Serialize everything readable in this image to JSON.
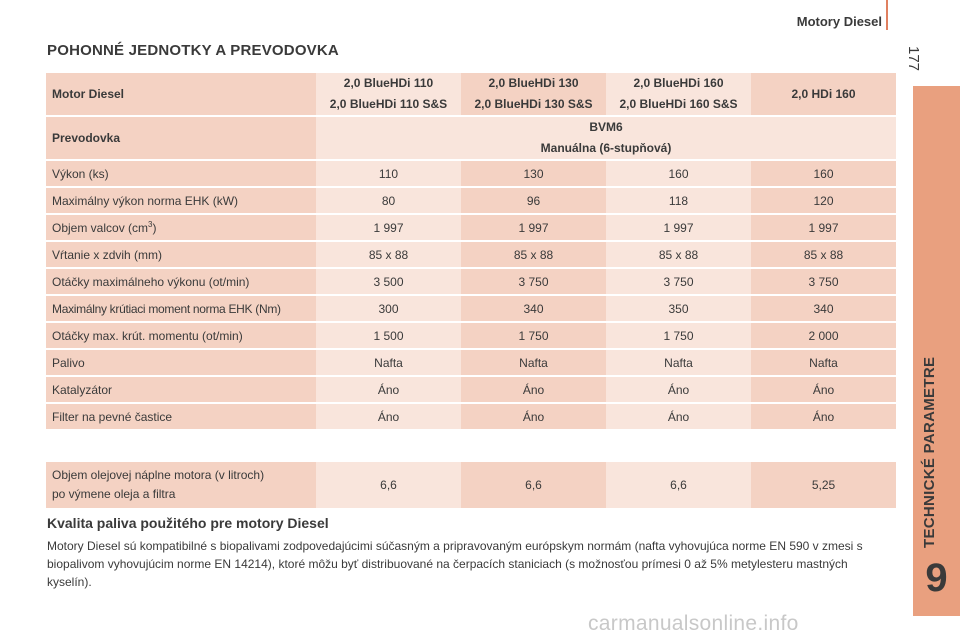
{
  "header": {
    "title": "Motory Diesel",
    "page_number": "177"
  },
  "side_tab": {
    "label": "TECHNICKÉ PARAMETRE",
    "chapter": "9"
  },
  "section_title": "POHONNÉ JEDNOTKY A PREVODOVKA",
  "table": {
    "header_label": "Motor Diesel",
    "engines": [
      {
        "line1": "2,0 BlueHDi 110",
        "line2": "2,0 BlueHDi 110 S&S"
      },
      {
        "line1": "2,0 BlueHDi 130",
        "line2": "2,0 BlueHDi 130 S&S"
      },
      {
        "line1": "2,0 BlueHDi 160",
        "line2": "2,0 BlueHDi 160 S&S"
      },
      {
        "line1": "2,0 HDi 160",
        "line2": ""
      }
    ],
    "gearbox_label": "Prevodovka",
    "gearbox_line1": "BVM6",
    "gearbox_line2": "Manuálna (6-stupňová)",
    "rows": [
      {
        "label": "Výkon (ks)",
        "values": [
          "110",
          "130",
          "160",
          "160"
        ]
      },
      {
        "label": "Maximálny výkon norma EHK (kW)",
        "values": [
          "80",
          "96",
          "118",
          "120"
        ]
      },
      {
        "label_pre": "Objem valcov (cm",
        "label_sup": "3",
        "label_post": ")",
        "values": [
          "1 997",
          "1 997",
          "1 997",
          "1 997"
        ]
      },
      {
        "label": "Vŕtanie x zdvih (mm)",
        "values": [
          "85 x 88",
          "85 x 88",
          "85 x 88",
          "85 x 88"
        ]
      },
      {
        "label": "Otáčky maximálneho výkonu (ot/min)",
        "values": [
          "3 500",
          "3 750",
          "3 750",
          "3 750"
        ]
      },
      {
        "label": "Maximálny krútiaci moment norma EHK (Nm)",
        "values": [
          "300",
          "340",
          "350",
          "340"
        ]
      },
      {
        "label": "Otáčky max. krút. momentu (ot/min)",
        "values": [
          "1 500",
          "1 750",
          "1 750",
          "2 000"
        ]
      },
      {
        "label": "Palivo",
        "values": [
          "Nafta",
          "Nafta",
          "Nafta",
          "Nafta"
        ]
      },
      {
        "label": "Katalyzátor",
        "values": [
          "Áno",
          "Áno",
          "Áno",
          "Áno"
        ]
      },
      {
        "label": "Filter na pevné častice",
        "values": [
          "Áno",
          "Áno",
          "Áno",
          "Áno"
        ]
      }
    ]
  },
  "oil_table": {
    "label_line1": "Objem olejovej náplne motora (v litroch)",
    "label_line2": "po výmene oleja a filtra",
    "values": [
      "6,6",
      "6,6",
      "6,6",
      "5,25"
    ]
  },
  "fuel_quality": {
    "title": "Kvalita paliva použitého pre motory Diesel",
    "text": "Motory Diesel sú kompatibilné s biopalivami zodpovedajúcimi súčasným a pripravovaným európskym normám (nafta vyhovujúca norme EN 590 v zmesi s biopalivom vyhovujúcim norme EN 14214), ktoré môžu byť distribuované na čerpacích staniciach (s možnosťou prímesi 0 až 5% metylesteru mastných kyselín)."
  },
  "watermark": "carmanualsonline.info"
}
